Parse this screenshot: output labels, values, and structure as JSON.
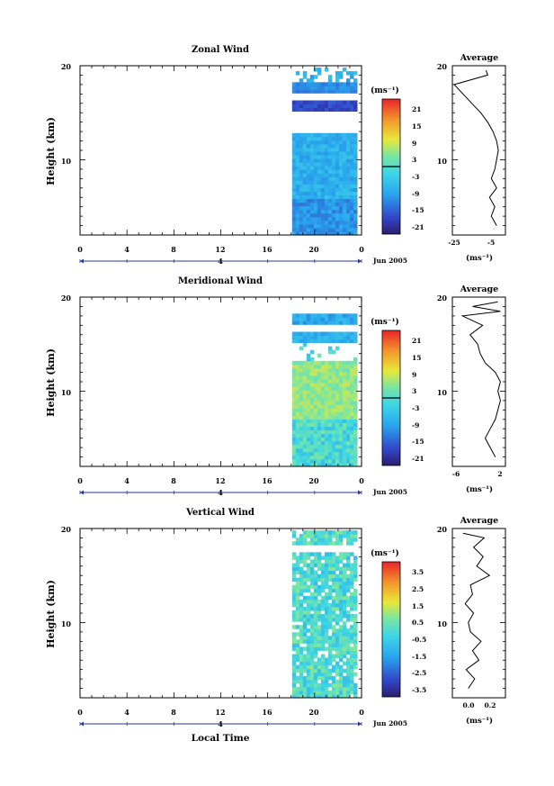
{
  "chart_data": [
    {
      "type": "heatmap",
      "title": "Zonal Wind",
      "ylabel": "Height (km)",
      "xlabel": "",
      "x_ticks": [
        "0",
        "4",
        "8",
        "12",
        "16",
        "20",
        "0"
      ],
      "x_range_hours": [
        0,
        24
      ],
      "y_ticks": [
        "20",
        "10"
      ],
      "y_range_km": [
        2,
        20
      ],
      "date_marker": "4",
      "date_label": "Jun 2005",
      "data_start_hour": 18,
      "units": "(ms⁻¹)",
      "colorbar_ticks": [
        "21",
        "15",
        "9",
        "3",
        "-3",
        "-9",
        "-15",
        "-21"
      ],
      "colorbar_range": [
        -24,
        24
      ],
      "average": {
        "title": "Average",
        "x_ticks": [
          "-25",
          "-5"
        ],
        "x_range": [
          -28,
          2
        ],
        "xlabel": "(ms⁻¹)",
        "y_ticks": [
          "20",
          "10"
        ],
        "profile": [
          [
            3.0,
            -3
          ],
          [
            4.0,
            -6
          ],
          [
            5.0,
            -4
          ],
          [
            6.0,
            -7
          ],
          [
            7.0,
            -3
          ],
          [
            8.0,
            -6
          ],
          [
            9.0,
            -4
          ],
          [
            10.0,
            -3
          ],
          [
            11.0,
            -2
          ],
          [
            12.0,
            -3
          ],
          [
            13.0,
            -5
          ],
          [
            14.0,
            -8
          ],
          [
            15.0,
            -12
          ],
          [
            16.0,
            -17
          ],
          [
            17.0,
            -22
          ],
          [
            18.0,
            -27
          ],
          [
            19.0,
            -8
          ],
          [
            19.5,
            -9
          ]
        ]
      }
    },
    {
      "type": "heatmap",
      "title": "Meridional Wind",
      "ylabel": "Height (km)",
      "xlabel": "",
      "x_ticks": [
        "0",
        "4",
        "8",
        "12",
        "16",
        "20",
        "0"
      ],
      "x_range_hours": [
        0,
        24
      ],
      "y_ticks": [
        "20",
        "10"
      ],
      "y_range_km": [
        2,
        20
      ],
      "date_marker": "4",
      "date_label": "Jun 2005",
      "data_start_hour": 18,
      "units": "(ms⁻¹)",
      "colorbar_ticks": [
        "21",
        "15",
        "9",
        "3",
        "-3",
        "-9",
        "-15",
        "-21"
      ],
      "colorbar_range": [
        -24,
        24
      ],
      "average": {
        "title": "Average",
        "x_ticks": [
          "-6",
          "2"
        ],
        "x_range": [
          -7,
          3.5
        ],
        "xlabel": "(ms⁻¹)",
        "y_ticks": [
          "20",
          "10"
        ],
        "profile": [
          [
            3.0,
            1.5
          ],
          [
            4.0,
            0.5
          ],
          [
            5.0,
            -0.5
          ],
          [
            6.0,
            0.5
          ],
          [
            7.0,
            1.5
          ],
          [
            8.0,
            2.0
          ],
          [
            9.0,
            2.5
          ],
          [
            10.0,
            2.0
          ],
          [
            11.0,
            2.5
          ],
          [
            12.0,
            1.5
          ],
          [
            13.0,
            -0.5
          ],
          [
            14.0,
            -1.5
          ],
          [
            15.0,
            -2.0
          ],
          [
            16.0,
            -3.5
          ],
          [
            17.0,
            -1.0
          ],
          [
            18.0,
            -5.0
          ],
          [
            18.5,
            2.5
          ],
          [
            19.0,
            -3.0
          ],
          [
            19.5,
            2.0
          ]
        ]
      }
    },
    {
      "type": "heatmap",
      "title": "Vertical Wind",
      "ylabel": "Height (km)",
      "xlabel": "Local Time",
      "x_ticks": [
        "0",
        "4",
        "8",
        "12",
        "16",
        "20",
        "0"
      ],
      "x_range_hours": [
        0,
        24
      ],
      "y_ticks": [
        "20",
        "10"
      ],
      "y_range_km": [
        2,
        20
      ],
      "date_marker": "4",
      "date_label": "Jun 2005",
      "data_start_hour": 18,
      "units": "(ms⁻¹)",
      "colorbar_ticks": [
        "3.5",
        "2.5",
        "1.5",
        "0.5",
        "-0.5",
        "-1.5",
        "-2.5",
        "-3.5"
      ],
      "colorbar_range": [
        -4,
        4
      ],
      "average": {
        "title": "Average",
        "x_ticks": [
          "0.0",
          "0.2"
        ],
        "x_range": [
          -0.15,
          0.35
        ],
        "xlabel": "(ms⁻¹)",
        "y_ticks": [
          "20",
          "10"
        ],
        "profile": [
          [
            3.0,
            0.0
          ],
          [
            4.0,
            0.06
          ],
          [
            5.0,
            -0.02
          ],
          [
            6.0,
            0.1
          ],
          [
            7.0,
            0.04
          ],
          [
            8.0,
            0.12
          ],
          [
            9.0,
            0.02
          ],
          [
            10.0,
            0.0
          ],
          [
            11.0,
            0.05
          ],
          [
            12.0,
            -0.03
          ],
          [
            13.0,
            0.04
          ],
          [
            14.0,
            0.02
          ],
          [
            15.0,
            0.2
          ],
          [
            16.0,
            0.08
          ],
          [
            17.0,
            0.14
          ],
          [
            18.0,
            0.05
          ],
          [
            19.0,
            0.15
          ],
          [
            19.5,
            -0.05
          ]
        ]
      }
    }
  ]
}
